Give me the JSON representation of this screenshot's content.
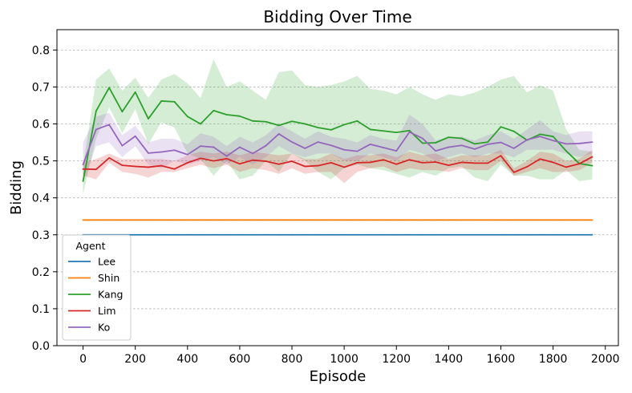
{
  "chart_data": {
    "type": "line",
    "title": "Bidding Over Time",
    "xlabel": "Episode",
    "ylabel": "Bidding",
    "xlim": [
      -100,
      2050
    ],
    "ylim": [
      0.0,
      0.855
    ],
    "xticks": [
      0,
      200,
      400,
      600,
      800,
      1000,
      1200,
      1400,
      1600,
      1800,
      2000
    ],
    "yticks": [
      0.0,
      0.1,
      0.2,
      0.3,
      0.4,
      0.5,
      0.6,
      0.7,
      0.8
    ],
    "ytick_labels": [
      "0.0",
      "0.1",
      "0.2",
      "0.3",
      "0.4",
      "0.5",
      "0.6",
      "0.7",
      "0.8"
    ],
    "grid": "horizontal dashed",
    "legend": {
      "title": "Agent",
      "placement": "lower-left"
    },
    "x": [
      0,
      50,
      100,
      150,
      200,
      250,
      300,
      350,
      400,
      450,
      500,
      550,
      600,
      650,
      700,
      750,
      800,
      850,
      900,
      950,
      1000,
      1050,
      1100,
      1150,
      1200,
      1250,
      1300,
      1350,
      1400,
      1450,
      1500,
      1550,
      1600,
      1650,
      1700,
      1750,
      1800,
      1850,
      1900,
      1950
    ],
    "series": [
      {
        "name": "Lee",
        "color": "#1f77b4",
        "values": [
          0.3,
          0.3,
          0.3,
          0.3,
          0.3,
          0.3,
          0.3,
          0.3,
          0.3,
          0.3,
          0.3,
          0.3,
          0.3,
          0.3,
          0.3,
          0.3,
          0.3,
          0.3,
          0.3,
          0.3,
          0.3,
          0.3,
          0.3,
          0.3,
          0.3,
          0.3,
          0.3,
          0.3,
          0.3,
          0.3,
          0.3,
          0.3,
          0.3,
          0.3,
          0.3,
          0.3,
          0.3,
          0.3,
          0.3,
          0.3
        ]
      },
      {
        "name": "Shin",
        "color": "#ff7f0e",
        "values": [
          0.34,
          0.34,
          0.34,
          0.34,
          0.34,
          0.34,
          0.34,
          0.34,
          0.34,
          0.34,
          0.34,
          0.34,
          0.34,
          0.34,
          0.34,
          0.34,
          0.34,
          0.34,
          0.34,
          0.34,
          0.34,
          0.34,
          0.34,
          0.34,
          0.34,
          0.34,
          0.34,
          0.34,
          0.34,
          0.34,
          0.34,
          0.34,
          0.34,
          0.34,
          0.34,
          0.34,
          0.34,
          0.34,
          0.34,
          0.34
        ]
      },
      {
        "name": "Kang",
        "color": "#2ca02c",
        "values": [
          0.445,
          0.635,
          0.698,
          0.633,
          0.686,
          0.614,
          0.662,
          0.66,
          0.62,
          0.6,
          0.636,
          0.625,
          0.621,
          0.608,
          0.606,
          0.596,
          0.607,
          0.6,
          0.59,
          0.584,
          0.598,
          0.608,
          0.585,
          0.581,
          0.577,
          0.582,
          0.548,
          0.549,
          0.564,
          0.561,
          0.546,
          0.551,
          0.592,
          0.58,
          0.556,
          0.572,
          0.566,
          0.527,
          0.493,
          0.487
        ],
        "lower": [
          0.41,
          0.56,
          0.645,
          0.575,
          0.64,
          0.545,
          0.605,
          0.59,
          0.52,
          0.505,
          0.46,
          0.5,
          0.45,
          0.46,
          0.5,
          0.47,
          0.52,
          0.5,
          0.47,
          0.45,
          0.48,
          0.49,
          0.48,
          0.475,
          0.465,
          0.455,
          0.47,
          0.46,
          0.48,
          0.485,
          0.455,
          0.445,
          0.49,
          0.46,
          0.46,
          0.45,
          0.45,
          0.475,
          0.445,
          0.45
        ],
        "upper": [
          0.485,
          0.72,
          0.75,
          0.69,
          0.725,
          0.67,
          0.72,
          0.735,
          0.71,
          0.67,
          0.775,
          0.7,
          0.715,
          0.69,
          0.665,
          0.74,
          0.745,
          0.705,
          0.7,
          0.705,
          0.715,
          0.73,
          0.695,
          0.69,
          0.68,
          0.7,
          0.68,
          0.665,
          0.68,
          0.675,
          0.685,
          0.7,
          0.72,
          0.73,
          0.685,
          0.705,
          0.69,
          0.585,
          0.53,
          0.525
        ]
      },
      {
        "name": "Lim",
        "color": "#d62728",
        "values": [
          0.478,
          0.477,
          0.508,
          0.488,
          0.485,
          0.483,
          0.487,
          0.478,
          0.495,
          0.507,
          0.5,
          0.506,
          0.492,
          0.502,
          0.499,
          0.491,
          0.499,
          0.485,
          0.487,
          0.495,
          0.483,
          0.495,
          0.496,
          0.503,
          0.491,
          0.503,
          0.495,
          0.497,
          0.488,
          0.496,
          0.494,
          0.494,
          0.514,
          0.469,
          0.484,
          0.505,
          0.496,
          0.483,
          0.492,
          0.511
        ],
        "lower": [
          0.46,
          0.45,
          0.495,
          0.47,
          0.465,
          0.455,
          0.47,
          0.47,
          0.48,
          0.49,
          0.48,
          0.49,
          0.47,
          0.48,
          0.475,
          0.465,
          0.48,
          0.465,
          0.47,
          0.47,
          0.44,
          0.47,
          0.48,
          0.485,
          0.47,
          0.48,
          0.475,
          0.475,
          0.47,
          0.48,
          0.475,
          0.475,
          0.5,
          0.46,
          0.47,
          0.48,
          0.47,
          0.47,
          0.475,
          0.495
        ],
        "upper": [
          0.495,
          0.505,
          0.52,
          0.505,
          0.505,
          0.505,
          0.505,
          0.5,
          0.515,
          0.525,
          0.52,
          0.525,
          0.515,
          0.525,
          0.52,
          0.515,
          0.52,
          0.505,
          0.505,
          0.52,
          0.505,
          0.515,
          0.515,
          0.52,
          0.51,
          0.525,
          0.515,
          0.52,
          0.505,
          0.515,
          0.515,
          0.515,
          0.53,
          0.48,
          0.5,
          0.525,
          0.52,
          0.5,
          0.505,
          0.53
        ]
      },
      {
        "name": "Ko",
        "color": "#9467bd",
        "values": [
          0.49,
          0.585,
          0.598,
          0.541,
          0.567,
          0.521,
          0.524,
          0.529,
          0.517,
          0.54,
          0.537,
          0.513,
          0.537,
          0.52,
          0.541,
          0.573,
          0.551,
          0.534,
          0.551,
          0.542,
          0.53,
          0.526,
          0.545,
          0.536,
          0.527,
          0.578,
          0.561,
          0.527,
          0.537,
          0.542,
          0.532,
          0.545,
          0.55,
          0.534,
          0.557,
          0.566,
          0.555,
          0.546,
          0.547,
          0.551
        ],
        "lower": [
          0.44,
          0.54,
          0.55,
          0.51,
          0.54,
          0.49,
          0.48,
          0.5,
          0.49,
          0.5,
          0.51,
          0.49,
          0.51,
          0.49,
          0.51,
          0.54,
          0.52,
          0.51,
          0.52,
          0.52,
          0.5,
          0.5,
          0.52,
          0.51,
          0.5,
          0.53,
          0.52,
          0.5,
          0.51,
          0.52,
          0.51,
          0.52,
          0.52,
          0.51,
          0.53,
          0.53,
          0.53,
          0.52,
          0.51,
          0.52
        ],
        "upper": [
          0.55,
          0.62,
          0.63,
          0.57,
          0.595,
          0.55,
          0.56,
          0.56,
          0.545,
          0.575,
          0.565,
          0.54,
          0.565,
          0.55,
          0.57,
          0.6,
          0.58,
          0.56,
          0.58,
          0.565,
          0.56,
          0.55,
          0.57,
          0.56,
          0.555,
          0.625,
          0.6,
          0.555,
          0.565,
          0.565,
          0.555,
          0.57,
          0.58,
          0.56,
          0.585,
          0.61,
          0.58,
          0.57,
          0.58,
          0.58
        ]
      }
    ]
  }
}
